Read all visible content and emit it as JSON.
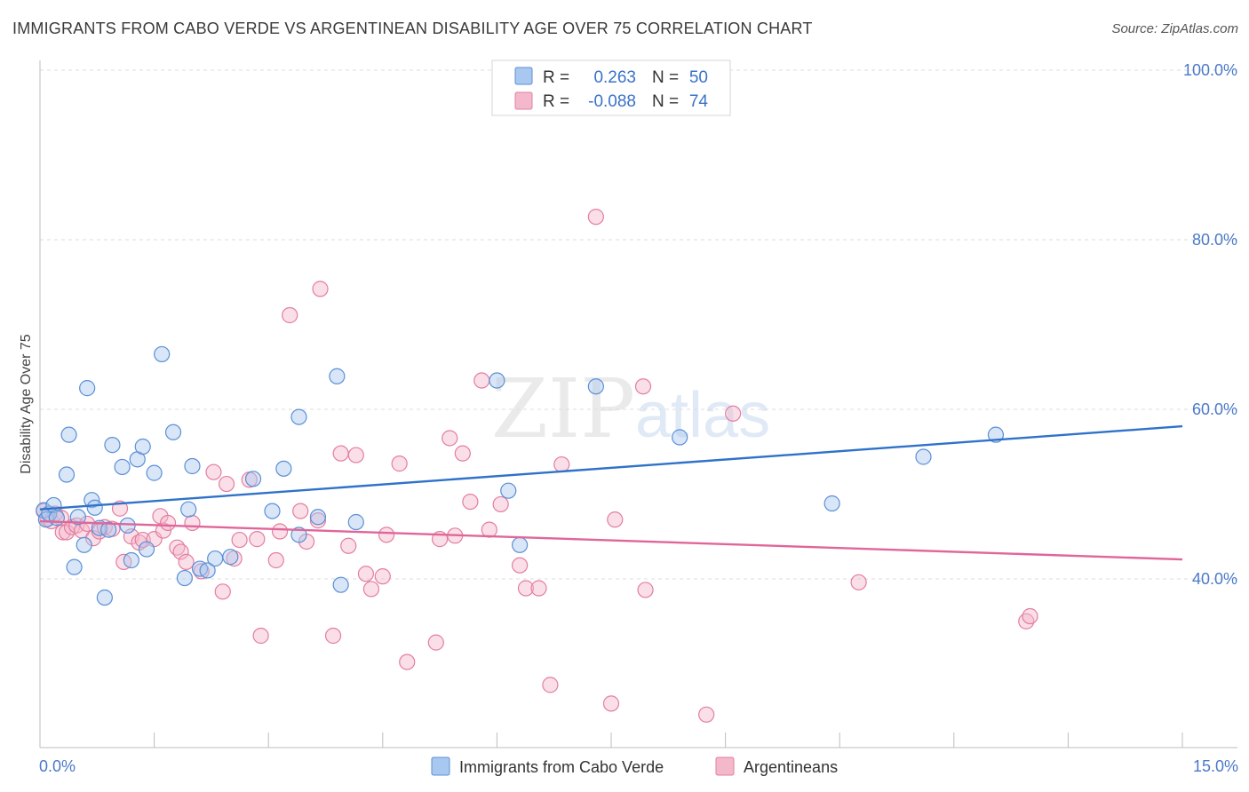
{
  "title": "IMMIGRANTS FROM CABO VERDE VS ARGENTINEAN DISABILITY AGE OVER 75 CORRELATION CHART",
  "source": "Source: ZipAtlas.com",
  "watermark": {
    "zip": "ZIP",
    "atlas": "atlas"
  },
  "colors": {
    "blue_fill": "#a9c8ef",
    "blue_stroke": "#5b8fd6",
    "blue_line": "#2f72c9",
    "pink_fill": "#f4b8cb",
    "pink_stroke": "#e37ea0",
    "pink_line": "#e0669a",
    "axis_text": "#4a79c9",
    "grid": "#dddddd"
  },
  "legend_top": [
    {
      "r_label": "R =",
      "r_value": "0.263",
      "n_label": "N =",
      "n_value": "50"
    },
    {
      "r_label": "R =",
      "r_value": "-0.088",
      "n_label": "N =",
      "n_value": "74"
    }
  ],
  "chart_data": {
    "type": "scatter",
    "title": "IMMIGRANTS FROM CABO VERDE VS ARGENTINEAN DISABILITY AGE OVER 75 CORRELATION CHART",
    "xlabel": "",
    "ylabel": "Disability Age Over 75",
    "xlim": [
      0,
      15
    ],
    "ylim": [
      20,
      102
    ],
    "x_tick_labels": [
      "0.0%",
      "15.0%"
    ],
    "y_ticks": [
      40,
      60,
      80,
      100
    ],
    "y_tick_labels": [
      "40.0%",
      "60.0%",
      "80.0%",
      "100.0%"
    ],
    "grid": true,
    "series": [
      {
        "name": "Immigrants from Cabo Verde",
        "color": "blue",
        "trend": {
          "x": [
            0,
            15
          ],
          "y": [
            48.2,
            58.0
          ]
        },
        "points": [
          [
            0.05,
            48.1
          ],
          [
            0.08,
            47.0
          ],
          [
            0.12,
            47.7
          ],
          [
            0.18,
            48.7
          ],
          [
            0.22,
            47.2
          ],
          [
            0.35,
            52.3
          ],
          [
            0.38,
            57.0
          ],
          [
            0.45,
            41.4
          ],
          [
            0.5,
            47.3
          ],
          [
            0.58,
            44.0
          ],
          [
            0.62,
            62.5
          ],
          [
            0.68,
            49.3
          ],
          [
            0.72,
            48.4
          ],
          [
            0.78,
            46.0
          ],
          [
            0.85,
            37.8
          ],
          [
            0.95,
            55.8
          ],
          [
            1.08,
            53.2
          ],
          [
            1.15,
            46.3
          ],
          [
            1.2,
            42.2
          ],
          [
            1.28,
            54.1
          ],
          [
            1.35,
            55.6
          ],
          [
            1.4,
            43.5
          ],
          [
            1.5,
            52.5
          ],
          [
            1.6,
            66.5
          ],
          [
            1.75,
            57.3
          ],
          [
            1.9,
            40.1
          ],
          [
            1.95,
            48.2
          ],
          [
            2.0,
            53.3
          ],
          [
            2.1,
            41.2
          ],
          [
            2.2,
            41.0
          ],
          [
            2.3,
            42.4
          ],
          [
            2.5,
            42.6
          ],
          [
            2.8,
            51.8
          ],
          [
            3.05,
            48.0
          ],
          [
            3.2,
            53.0
          ],
          [
            3.4,
            59.1
          ],
          [
            3.4,
            45.2
          ],
          [
            3.65,
            47.3
          ],
          [
            3.9,
            63.9
          ],
          [
            3.95,
            39.3
          ],
          [
            4.15,
            46.7
          ],
          [
            6.0,
            63.4
          ],
          [
            6.15,
            50.4
          ],
          [
            6.3,
            44.0
          ],
          [
            7.3,
            62.7
          ],
          [
            8.4,
            56.7
          ],
          [
            10.4,
            48.9
          ],
          [
            11.6,
            54.4
          ],
          [
            12.55,
            57.0
          ],
          [
            0.9,
            45.8
          ]
        ]
      },
      {
        "name": "Argentineans",
        "color": "pink",
        "trend": {
          "x": [
            0,
            15
          ],
          "y": [
            46.8,
            42.3
          ]
        },
        "points": [
          [
            0.05,
            48.0
          ],
          [
            0.1,
            47.1
          ],
          [
            0.15,
            46.8
          ],
          [
            0.2,
            47.7
          ],
          [
            0.28,
            47.2
          ],
          [
            0.3,
            45.5
          ],
          [
            0.35,
            45.5
          ],
          [
            0.42,
            46.1
          ],
          [
            0.48,
            46.3
          ],
          [
            0.55,
            45.7
          ],
          [
            0.62,
            46.5
          ],
          [
            0.7,
            44.8
          ],
          [
            0.78,
            45.6
          ],
          [
            0.85,
            46.1
          ],
          [
            0.95,
            45.9
          ],
          [
            1.05,
            48.3
          ],
          [
            1.1,
            42.0
          ],
          [
            1.2,
            45.0
          ],
          [
            1.3,
            44.3
          ],
          [
            1.35,
            44.6
          ],
          [
            1.5,
            44.7
          ],
          [
            1.58,
            47.4
          ],
          [
            1.62,
            45.7
          ],
          [
            1.68,
            46.6
          ],
          [
            1.8,
            43.7
          ],
          [
            1.85,
            43.2
          ],
          [
            1.92,
            42.0
          ],
          [
            2.0,
            46.6
          ],
          [
            2.12,
            40.9
          ],
          [
            2.28,
            52.6
          ],
          [
            2.4,
            38.5
          ],
          [
            2.45,
            51.2
          ],
          [
            2.55,
            42.4
          ],
          [
            2.62,
            44.6
          ],
          [
            2.75,
            51.7
          ],
          [
            2.85,
            44.7
          ],
          [
            2.9,
            33.3
          ],
          [
            3.1,
            42.2
          ],
          [
            3.15,
            45.6
          ],
          [
            3.28,
            71.1
          ],
          [
            3.42,
            48.0
          ],
          [
            3.5,
            44.4
          ],
          [
            3.65,
            46.9
          ],
          [
            3.68,
            74.2
          ],
          [
            3.85,
            33.3
          ],
          [
            3.95,
            54.8
          ],
          [
            4.05,
            43.9
          ],
          [
            4.15,
            54.6
          ],
          [
            4.28,
            40.6
          ],
          [
            4.35,
            38.8
          ],
          [
            4.5,
            40.3
          ],
          [
            4.55,
            45.2
          ],
          [
            4.72,
            53.6
          ],
          [
            4.82,
            30.2
          ],
          [
            5.2,
            32.5
          ],
          [
            5.25,
            44.7
          ],
          [
            5.38,
            56.6
          ],
          [
            5.45,
            45.1
          ],
          [
            5.55,
            54.8
          ],
          [
            5.65,
            49.1
          ],
          [
            5.8,
            63.4
          ],
          [
            5.9,
            45.8
          ],
          [
            6.05,
            48.8
          ],
          [
            6.3,
            41.6
          ],
          [
            6.38,
            38.9
          ],
          [
            6.55,
            38.9
          ],
          [
            6.7,
            27.5
          ],
          [
            6.85,
            53.5
          ],
          [
            7.3,
            82.7
          ],
          [
            7.5,
            25.3
          ],
          [
            7.55,
            47.0
          ],
          [
            7.92,
            62.7
          ],
          [
            7.95,
            38.7
          ],
          [
            8.75,
            24.0
          ]
        ],
        "extra_points": [
          [
            9.1,
            59.5
          ],
          [
            10.75,
            39.6
          ],
          [
            12.95,
            35.0
          ],
          [
            13.0,
            35.6
          ]
        ]
      }
    ]
  },
  "legend_bottom": [
    {
      "label": "Immigrants from Cabo Verde",
      "color": "blue"
    },
    {
      "label": "Argentineans",
      "color": "pink"
    }
  ]
}
